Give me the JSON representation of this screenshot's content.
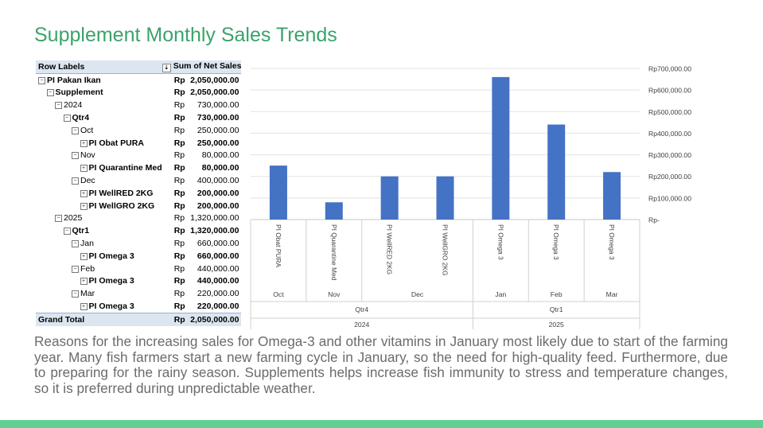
{
  "title": "Supplement Monthly Sales Trends",
  "pivot": {
    "header": {
      "label": "Row Labels",
      "value": "Sum of Net Sales"
    },
    "currency": "Rp",
    "rows": [
      {
        "label": "PI Pakan Ikan",
        "value": "2,050,000.00",
        "indent": 0,
        "toggle": "⊟",
        "bold": true
      },
      {
        "label": "Supplement",
        "value": "2,050,000.00",
        "indent": 1,
        "toggle": "⊟",
        "bold": true
      },
      {
        "label": "2024",
        "value": "730,000.00",
        "indent": 2,
        "toggle": "⊟",
        "bold": false
      },
      {
        "label": "Qtr4",
        "value": "730,000.00",
        "indent": 3,
        "toggle": "⊟",
        "bold": true
      },
      {
        "label": "Oct",
        "value": "250,000.00",
        "indent": 4,
        "toggle": "⊟",
        "bold": false
      },
      {
        "label": "PI Obat PURA",
        "value": "250,000.00",
        "indent": 5,
        "toggle": "⊞",
        "bold": true
      },
      {
        "label": "Nov",
        "value": "80,000.00",
        "indent": 4,
        "toggle": "⊟",
        "bold": false
      },
      {
        "label": "PI Quarantine Med",
        "value": "80,000.00",
        "indent": 5,
        "toggle": "⊞",
        "bold": true
      },
      {
        "label": "Dec",
        "value": "400,000.00",
        "indent": 4,
        "toggle": "⊟",
        "bold": false
      },
      {
        "label": "PI WellRED 2KG",
        "value": "200,000.00",
        "indent": 5,
        "toggle": "⊞",
        "bold": true
      },
      {
        "label": "PI WellGRO 2KG",
        "value": "200,000.00",
        "indent": 5,
        "toggle": "⊞",
        "bold": true
      },
      {
        "label": "2025",
        "value": "1,320,000.00",
        "indent": 2,
        "toggle": "⊟",
        "bold": false
      },
      {
        "label": "Qtr1",
        "value": "1,320,000.00",
        "indent": 3,
        "toggle": "⊟",
        "bold": true
      },
      {
        "label": "Jan",
        "value": "660,000.00",
        "indent": 4,
        "toggle": "⊟",
        "bold": false
      },
      {
        "label": "PI Omega 3",
        "value": "660,000.00",
        "indent": 5,
        "toggle": "⊞",
        "bold": true
      },
      {
        "label": "Feb",
        "value": "440,000.00",
        "indent": 4,
        "toggle": "⊟",
        "bold": false
      },
      {
        "label": "PI Omega 3",
        "value": "440,000.00",
        "indent": 5,
        "toggle": "⊞",
        "bold": true
      },
      {
        "label": "Mar",
        "value": "220,000.00",
        "indent": 4,
        "toggle": "⊟",
        "bold": false
      },
      {
        "label": "PI Omega 3",
        "value": "220,000.00",
        "indent": 5,
        "toggle": "⊞",
        "bold": true
      }
    ],
    "grand_total": {
      "label": "Grand Total",
      "value": "2,050,000.00"
    }
  },
  "chart_data": {
    "type": "bar",
    "categories": [
      "PI Obat PURA",
      "PI Quarantine Med",
      "PI WellRED 2KG",
      "PI WellGRO 2KG",
      "PI Omega 3",
      "PI Omega 3",
      "PI Omega 3"
    ],
    "months": [
      "Oct",
      "Nov",
      "Dec",
      "Dec",
      "Jan",
      "Feb",
      "Mar"
    ],
    "quarters": [
      "Qtr4",
      "Qtr4",
      "Qtr4",
      "Qtr4",
      "Qtr1",
      "Qtr1",
      "Qtr1"
    ],
    "years": [
      "2024",
      "2024",
      "2024",
      "2024",
      "2025",
      "2025",
      "2025"
    ],
    "values": [
      250000,
      80000,
      200000,
      200000,
      660000,
      440000,
      220000
    ],
    "ylim": [
      0,
      700000
    ],
    "yticks": [
      0,
      100000,
      200000,
      300000,
      400000,
      500000,
      600000,
      700000
    ],
    "ytick_labels": [
      "Rp-",
      "Rp100,000.00",
      "Rp200,000.00",
      "Rp300,000.00",
      "Rp400,000.00",
      "Rp500,000.00",
      "Rp600,000.00",
      "Rp700,000.00"
    ],
    "grid": true,
    "bar_color": "#4472c4",
    "y_axis_side": "right"
  },
  "paragraph": "Reasons for the increasing sales for Omega-3 and other vitamins in January most likely due to start of the farming year. Many fish farmers start a new farming cycle in January, so the need for high-quality feed. Furthermore, due to preparing for the rainy season. Supplements helps increase fish immunity to stress and temperature changes, so it is preferred during unpredictable weather.",
  "colors": {
    "title": "#3aa36a",
    "footer": "#62cf92",
    "pivot_header": "#dce6f1"
  }
}
